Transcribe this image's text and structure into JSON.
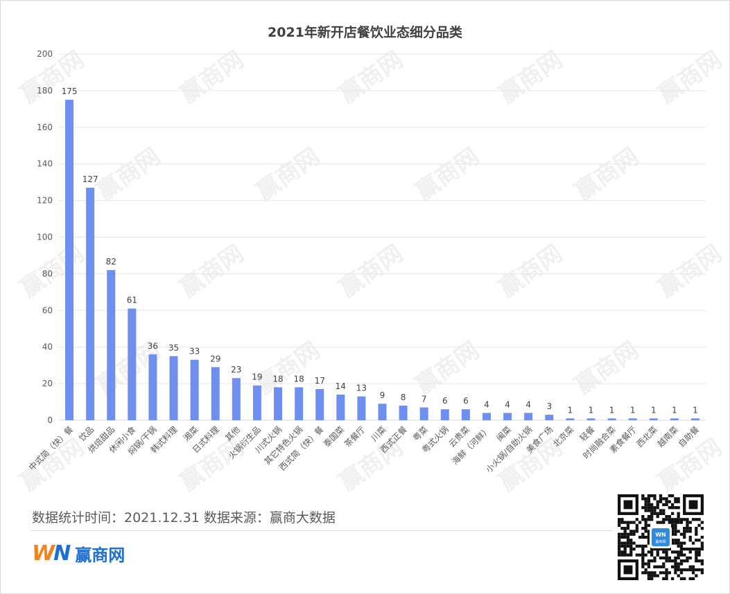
{
  "chart_data": {
    "type": "bar",
    "title": "2021年新开店餐饮业态细分品类",
    "ylim": [
      0,
      200
    ],
    "yticks": [
      0,
      20,
      40,
      60,
      80,
      100,
      120,
      140,
      160,
      180,
      200
    ],
    "grid": true,
    "bar_color": "#6f8ff0",
    "categories": [
      "中式简（快）餐",
      "饮品",
      "烘焙甜品",
      "休闲小食",
      "焖锅/干锅",
      "韩式料理",
      "湘菜",
      "日式料理",
      "其他",
      "火锅衍生品",
      "川式火锅",
      "其它特色火锅",
      "西式简（快）餐",
      "泰国菜",
      "茶餐厅",
      "川菜",
      "西式正餐",
      "粤菜",
      "粤式火锅",
      "云贵菜",
      "海鲜（河鲜）",
      "闽菜",
      "小火锅/自助火锅",
      "美食广场",
      "北京菜",
      "轻餐",
      "时尚融合菜",
      "素食餐厅",
      "西北菜",
      "越南菜",
      "自助餐"
    ],
    "values": [
      175,
      127,
      82,
      61,
      36,
      35,
      33,
      29,
      23,
      19,
      18,
      18,
      17,
      14,
      13,
      9,
      8,
      7,
      6,
      6,
      4,
      4,
      4,
      3,
      1,
      1,
      1,
      1,
      1,
      1,
      1
    ]
  },
  "footer": {
    "text": "数据统计时间：2021.12.31  数据来源：赢商大数据"
  },
  "logo": {
    "mark_w": "W",
    "mark_n": "N",
    "text": "赢商网"
  },
  "watermark": {
    "text": "赢商网"
  },
  "qr_badge": {
    "mark": "WN",
    "subtext": "赢商网"
  }
}
